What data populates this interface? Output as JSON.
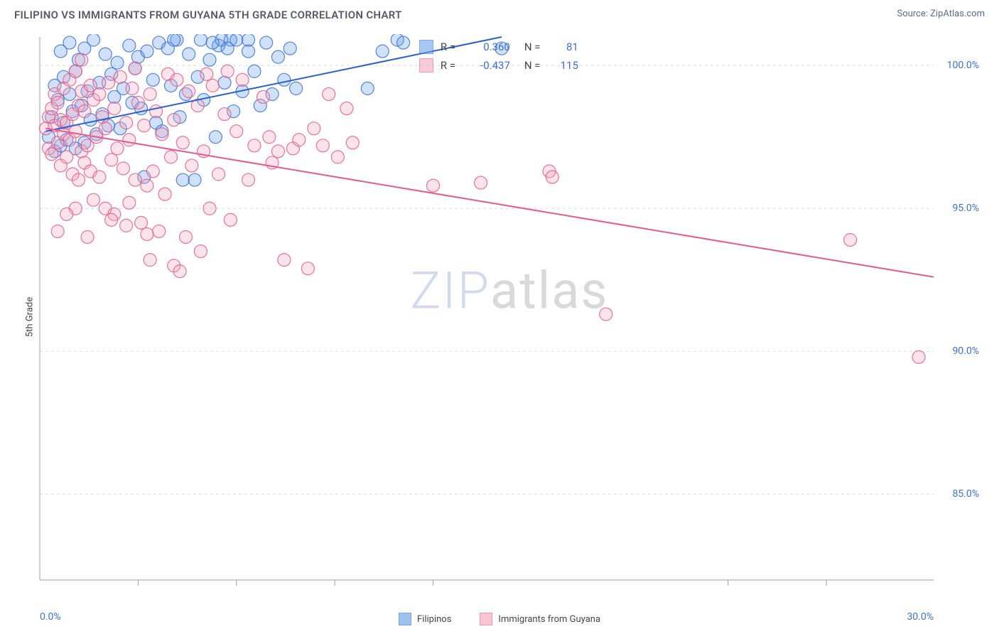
{
  "header": {
    "title": "FILIPINO VS IMMIGRANTS FROM GUYANA 5TH GRADE CORRELATION CHART",
    "source": "Source: ZipAtlas.com"
  },
  "axes": {
    "y_label": "5th Grade",
    "xlim": [
      0,
      30
    ],
    "ylim": [
      82,
      101
    ],
    "x_ticks": [
      0,
      30
    ],
    "x_tick_labels": [
      "0.0%",
      "30.0%"
    ],
    "x_minor_ticks": [
      3.3,
      6.6,
      9.9,
      13.2,
      23.1,
      26.4
    ],
    "y_ticks": [
      85,
      90,
      95,
      100
    ],
    "y_tick_labels": [
      "85.0%",
      "90.0%",
      "95.0%",
      "100.0%"
    ],
    "grid_color": "#d9dde3",
    "axis_color": "#9aa0a8",
    "tick_color": "#9aa0a8",
    "background_color": "#ffffff"
  },
  "series": [
    {
      "name": "Filipinos",
      "color_fill": "#6aa2e8",
      "color_fill_opacity": 0.32,
      "color_stroke": "#3b6fd8",
      "marker_radius": 9,
      "trend": {
        "x1": 0.2,
        "y1": 97.7,
        "x2": 15.5,
        "y2": 101.0,
        "stroke": "#2a5fce",
        "width": 2
      },
      "R_label": "R =",
      "R": "0.360",
      "N_label": "N =",
      "N": "81",
      "points": [
        [
          0.3,
          97.5
        ],
        [
          0.4,
          98.2
        ],
        [
          0.5,
          97.0
        ],
        [
          0.5,
          99.3
        ],
        [
          0.6,
          98.8
        ],
        [
          0.7,
          97.2
        ],
        [
          0.7,
          100.5
        ],
        [
          0.8,
          98.0
        ],
        [
          0.8,
          99.6
        ],
        [
          0.9,
          97.4
        ],
        [
          1.0,
          99.0
        ],
        [
          1.0,
          100.8
        ],
        [
          1.1,
          98.4
        ],
        [
          1.2,
          97.1
        ],
        [
          1.2,
          99.8
        ],
        [
          1.3,
          100.2
        ],
        [
          1.4,
          98.6
        ],
        [
          1.5,
          97.3
        ],
        [
          1.5,
          100.6
        ],
        [
          1.6,
          99.1
        ],
        [
          1.7,
          98.1
        ],
        [
          1.8,
          100.9
        ],
        [
          1.9,
          97.6
        ],
        [
          2.0,
          99.4
        ],
        [
          2.1,
          98.3
        ],
        [
          2.2,
          100.4
        ],
        [
          2.3,
          97.9
        ],
        [
          2.4,
          99.7
        ],
        [
          2.5,
          98.9
        ],
        [
          2.6,
          100.1
        ],
        [
          2.7,
          97.8
        ],
        [
          2.8,
          99.2
        ],
        [
          3.0,
          100.7
        ],
        [
          3.1,
          98.7
        ],
        [
          3.2,
          99.9
        ],
        [
          3.3,
          100.3
        ],
        [
          3.4,
          98.5
        ],
        [
          3.5,
          96.1
        ],
        [
          3.6,
          100.5
        ],
        [
          3.8,
          99.5
        ],
        [
          3.9,
          98.0
        ],
        [
          4.0,
          100.8
        ],
        [
          4.1,
          97.7
        ],
        [
          4.3,
          100.6
        ],
        [
          4.4,
          99.3
        ],
        [
          4.6,
          100.9
        ],
        [
          4.7,
          98.2
        ],
        [
          4.9,
          99.0
        ],
        [
          5.0,
          100.4
        ],
        [
          5.2,
          96.0
        ],
        [
          5.3,
          99.6
        ],
        [
          5.5,
          98.8
        ],
        [
          5.7,
          100.2
        ],
        [
          5.9,
          97.5
        ],
        [
          6.0,
          100.7
        ],
        [
          6.2,
          99.4
        ],
        [
          6.4,
          100.9
        ],
        [
          6.5,
          98.4
        ],
        [
          6.8,
          99.1
        ],
        [
          7.0,
          100.5
        ],
        [
          7.2,
          99.8
        ],
        [
          7.4,
          98.6
        ],
        [
          7.6,
          100.8
        ],
        [
          7.8,
          99.0
        ],
        [
          8.0,
          100.3
        ],
        [
          8.2,
          99.5
        ],
        [
          8.4,
          100.6
        ],
        [
          8.6,
          99.2
        ],
        [
          5.4,
          100.9
        ],
        [
          6.1,
          100.9
        ],
        [
          5.8,
          100.8
        ],
        [
          6.6,
          100.9
        ],
        [
          7.0,
          100.9
        ],
        [
          6.3,
          100.6
        ],
        [
          4.5,
          100.9
        ],
        [
          11.0,
          99.2
        ],
        [
          12.0,
          100.9
        ],
        [
          12.2,
          100.8
        ],
        [
          11.5,
          100.5
        ],
        [
          15.5,
          100.6
        ],
        [
          4.8,
          96.0
        ]
      ]
    },
    {
      "name": "Immigrants from Guyana",
      "color_fill": "#f2a8bd",
      "color_fill_opacity": 0.32,
      "color_stroke": "#e75a8a",
      "marker_radius": 9,
      "trend": {
        "x1": 0.2,
        "y1": 97.8,
        "x2": 30.0,
        "y2": 92.6,
        "stroke": "#e75a8a",
        "width": 2
      },
      "R_label": "R =",
      "R": "-0.437",
      "N_label": "N =",
      "N": "115",
      "points": [
        [
          0.2,
          97.8
        ],
        [
          0.3,
          98.2
        ],
        [
          0.3,
          97.1
        ],
        [
          0.4,
          98.5
        ],
        [
          0.4,
          96.9
        ],
        [
          0.5,
          97.9
        ],
        [
          0.5,
          99.0
        ],
        [
          0.6,
          97.3
        ],
        [
          0.6,
          98.7
        ],
        [
          0.7,
          96.5
        ],
        [
          0.7,
          98.1
        ],
        [
          0.8,
          97.6
        ],
        [
          0.8,
          99.2
        ],
        [
          0.9,
          96.8
        ],
        [
          0.9,
          98.0
        ],
        [
          1.0,
          97.4
        ],
        [
          1.0,
          99.5
        ],
        [
          1.1,
          96.2
        ],
        [
          1.1,
          98.3
        ],
        [
          1.2,
          97.7
        ],
        [
          1.2,
          99.8
        ],
        [
          1.3,
          96.0
        ],
        [
          1.3,
          98.6
        ],
        [
          1.4,
          97.0
        ],
        [
          1.4,
          99.1
        ],
        [
          1.5,
          96.6
        ],
        [
          1.5,
          98.4
        ],
        [
          1.6,
          97.2
        ],
        [
          1.7,
          99.3
        ],
        [
          1.7,
          96.3
        ],
        [
          1.8,
          98.8
        ],
        [
          1.8,
          95.3
        ],
        [
          1.9,
          97.5
        ],
        [
          2.0,
          99.0
        ],
        [
          2.0,
          96.1
        ],
        [
          2.1,
          98.2
        ],
        [
          2.2,
          95.0
        ],
        [
          2.2,
          97.8
        ],
        [
          2.3,
          99.4
        ],
        [
          2.4,
          96.7
        ],
        [
          2.5,
          98.5
        ],
        [
          2.5,
          94.8
        ],
        [
          2.6,
          97.1
        ],
        [
          2.7,
          99.6
        ],
        [
          2.8,
          96.4
        ],
        [
          2.9,
          98.0
        ],
        [
          3.0,
          95.2
        ],
        [
          3.0,
          97.4
        ],
        [
          3.1,
          99.2
        ],
        [
          3.2,
          96.0
        ],
        [
          3.3,
          98.7
        ],
        [
          3.4,
          94.5
        ],
        [
          3.5,
          97.9
        ],
        [
          3.6,
          95.8
        ],
        [
          3.7,
          99.0
        ],
        [
          3.8,
          96.3
        ],
        [
          3.9,
          98.4
        ],
        [
          4.0,
          94.2
        ],
        [
          4.1,
          97.6
        ],
        [
          4.2,
          95.5
        ],
        [
          4.3,
          99.7
        ],
        [
          4.4,
          96.8
        ],
        [
          4.5,
          93.0
        ],
        [
          4.5,
          98.1
        ],
        [
          4.7,
          92.8
        ],
        [
          4.8,
          97.3
        ],
        [
          4.9,
          94.0
        ],
        [
          5.0,
          99.1
        ],
        [
          5.1,
          96.5
        ],
        [
          5.3,
          98.6
        ],
        [
          5.4,
          93.5
        ],
        [
          5.5,
          97.0
        ],
        [
          5.7,
          95.0
        ],
        [
          5.8,
          99.3
        ],
        [
          6.0,
          96.2
        ],
        [
          6.2,
          98.3
        ],
        [
          6.4,
          94.6
        ],
        [
          6.6,
          97.7
        ],
        [
          6.8,
          99.5
        ],
        [
          7.0,
          96.0
        ],
        [
          7.2,
          97.2
        ],
        [
          7.5,
          98.9
        ],
        [
          7.7,
          97.5
        ],
        [
          7.8,
          96.6
        ],
        [
          8.0,
          97.0
        ],
        [
          8.2,
          93.2
        ],
        [
          8.5,
          97.1
        ],
        [
          8.7,
          97.4
        ],
        [
          9.0,
          92.9
        ],
        [
          9.2,
          97.8
        ],
        [
          9.5,
          97.2
        ],
        [
          9.7,
          99.0
        ],
        [
          10.0,
          96.8
        ],
        [
          10.3,
          98.5
        ],
        [
          10.5,
          97.3
        ],
        [
          3.7,
          93.2
        ],
        [
          2.4,
          94.6
        ],
        [
          1.6,
          94.0
        ],
        [
          1.2,
          95.0
        ],
        [
          0.9,
          94.8
        ],
        [
          0.6,
          94.2
        ],
        [
          6.3,
          99.8
        ],
        [
          5.6,
          99.7
        ],
        [
          4.6,
          99.5
        ],
        [
          3.2,
          99.9
        ],
        [
          1.4,
          100.2
        ],
        [
          13.2,
          95.8
        ],
        [
          14.8,
          95.9
        ],
        [
          17.1,
          96.3
        ],
        [
          17.2,
          96.1
        ],
        [
          19.0,
          91.3
        ],
        [
          27.2,
          93.9
        ],
        [
          29.5,
          89.8
        ],
        [
          2.9,
          94.4
        ],
        [
          3.6,
          94.1
        ]
      ]
    }
  ],
  "legend": {
    "items": [
      {
        "label": "Filipinos",
        "fill": "#6aa2e8",
        "fill_opacity": 0.35,
        "stroke": "#3b6fd8"
      },
      {
        "label": "Immigrants from Guyana",
        "fill": "#f2a8bd",
        "fill_opacity": 0.35,
        "stroke": "#e75a8a"
      }
    ]
  },
  "stats_box": {
    "left_pct": 40.5,
    "top_pct": 1.0
  },
  "watermark": {
    "a": "ZIP",
    "b": "atlas"
  }
}
